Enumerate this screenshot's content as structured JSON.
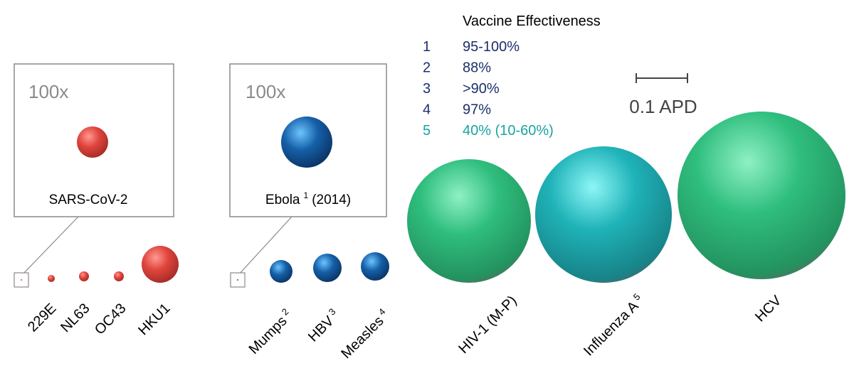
{
  "insets": {
    "sars": {
      "zoom": "100x",
      "label": "SARS-CoV-2"
    },
    "ebola": {
      "zoom": "100x",
      "label": "Ebola",
      "superscript": "1",
      "suffix": "(2014)"
    }
  },
  "legend": {
    "title": "Vaccine Effectiveness",
    "rows": [
      {
        "num": "1",
        "value": "95-100%",
        "color": "#1b2f6b"
      },
      {
        "num": "2",
        "value": "88%",
        "color": "#1b2f6b"
      },
      {
        "num": "3",
        "value": ">90%",
        "color": "#1b2f6b"
      },
      {
        "num": "4",
        "value": "97%",
        "color": "#1b2f6b"
      },
      {
        "num": "5",
        "value": "40% (10-60%)",
        "color": "#1aa3a3"
      }
    ]
  },
  "scale_bar": {
    "label": "0.1 APD"
  },
  "viruses": {
    "coronaviruses": [
      {
        "name": "229E"
      },
      {
        "name": "NL63"
      },
      {
        "name": "OC43"
      },
      {
        "name": "HKU1"
      }
    ],
    "vaccinated": [
      {
        "name": "Mumps",
        "sup": "2"
      },
      {
        "name": "HBV",
        "sup": "3"
      },
      {
        "name": "Measles",
        "sup": "4"
      }
    ],
    "large": [
      {
        "name": "HIV-1 (M-P)",
        "sup": ""
      },
      {
        "name": "Influenza A",
        "sup": "5"
      },
      {
        "name": "HCV",
        "sup": ""
      }
    ]
  },
  "colors": {
    "coronavirus_red": "#e0453d",
    "vaccinated_blue": "#1560a8",
    "hiv_green": "#27b57a",
    "influenza_teal": "#1fb3b8",
    "hcv_green": "#2fbe7e",
    "inset_border": "#8a8a8a",
    "zoom_text": "#8a8a8a"
  }
}
